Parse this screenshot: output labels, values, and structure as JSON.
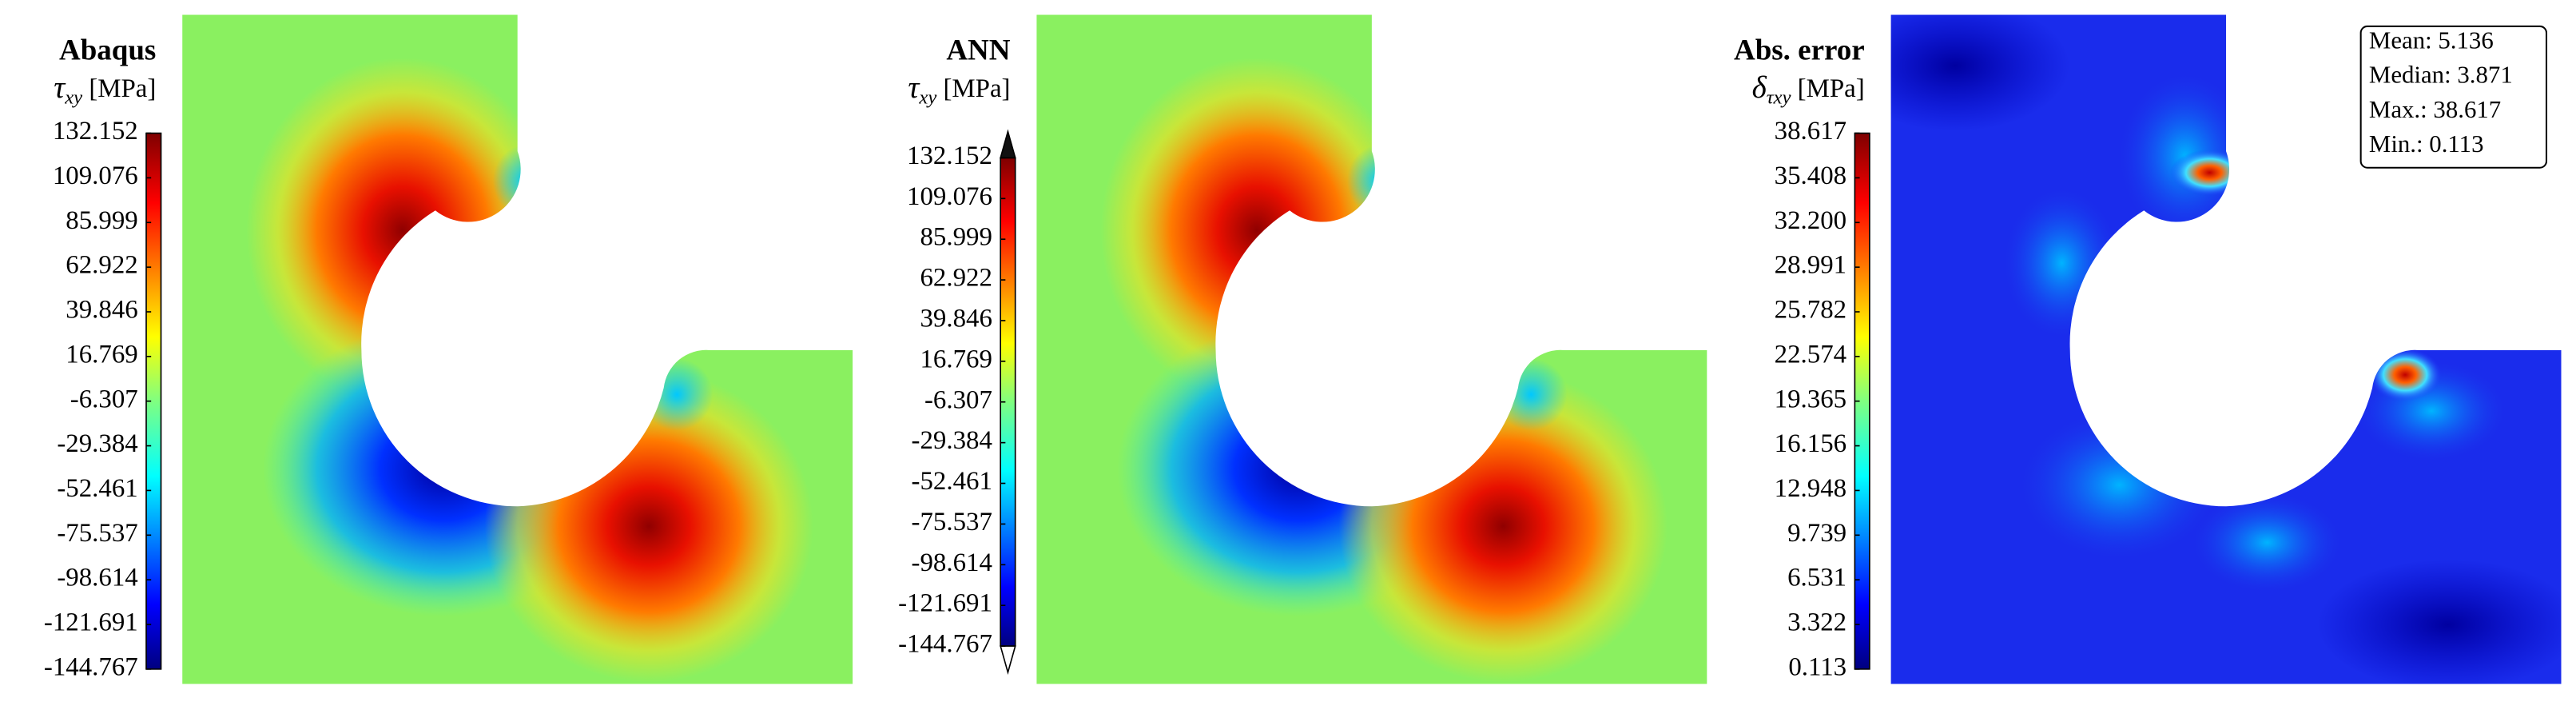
{
  "panels": [
    {
      "title": "Abaqus",
      "symbol": "τ",
      "subscript": "xy",
      "unit": "[MPa]",
      "ticks": [
        "132.152",
        "109.076",
        "85.999",
        "62.922",
        "39.846",
        "16.769",
        "-6.307",
        "-29.384",
        "-52.461",
        "-75.537",
        "-98.614",
        "-121.691",
        "-144.767"
      ]
    },
    {
      "title": "ANN",
      "symbol": "τ",
      "subscript": "xy",
      "unit": "[MPa]",
      "ticks": [
        "132.152",
        "109.076",
        "85.999",
        "62.922",
        "39.846",
        "16.769",
        "-6.307",
        "-29.384",
        "-52.461",
        "-75.537",
        "-98.614",
        "-121.691",
        "-144.767"
      ]
    },
    {
      "title": "Abs. error",
      "symbol": "δ",
      "subscript": "τxy",
      "unit": "[MPa]",
      "ticks": [
        "38.617",
        "35.408",
        "32.200",
        "28.991",
        "25.782",
        "22.574",
        "19.365",
        "16.156",
        "12.948",
        "9.739",
        "6.531",
        "3.322",
        "0.113"
      ],
      "stats": [
        "Mean: 5.136",
        "Median: 3.871",
        "Max.: 38.617",
        "Min.: 0.113"
      ]
    }
  ]
}
